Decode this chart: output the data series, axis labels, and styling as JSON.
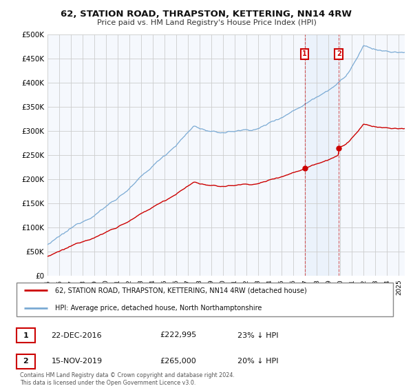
{
  "title": "62, STATION ROAD, THRAPSTON, KETTERING, NN14 4RW",
  "subtitle": "Price paid vs. HM Land Registry's House Price Index (HPI)",
  "background_color": "#ffffff",
  "plot_bg_color": "#f5f8fd",
  "grid_color": "#cccccc",
  "hpi_color": "#7aaad4",
  "price_color": "#cc0000",
  "marker1_label": "22-DEC-2016",
  "marker1_price_str": "£222,995",
  "marker1_pct": "23% ↓ HPI",
  "marker2_label": "15-NOV-2019",
  "marker2_price_str": "£265,000",
  "marker2_pct": "20% ↓ HPI",
  "legend_line1": "62, STATION ROAD, THRAPSTON, KETTERING, NN14 4RW (detached house)",
  "legend_line2": "HPI: Average price, detached house, North Northamptonshire",
  "footnote1": "Contains HM Land Registry data © Crown copyright and database right 2024.",
  "footnote2": "This data is licensed under the Open Government Licence v3.0.",
  "marker1_year": 2016.96,
  "marker2_year": 2019.875,
  "marker1_price": 222995,
  "marker2_price": 265000
}
